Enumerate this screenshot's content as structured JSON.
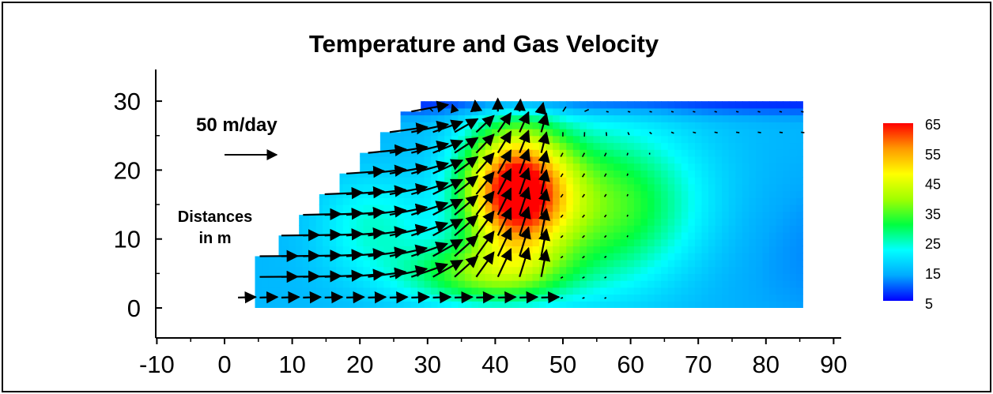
{
  "chart_data": {
    "type": "heatmap",
    "title": "Temperature and Gas Velocity",
    "xlabel": "",
    "ylabel": "",
    "xlim": [
      -10,
      90
    ],
    "ylim": [
      -3,
      35
    ],
    "x_ticks": [
      -10,
      0,
      10,
      20,
      30,
      40,
      50,
      60,
      70,
      80,
      90
    ],
    "y_ticks": [
      0,
      10,
      20,
      30
    ],
    "annotations": {
      "reference_arrow_label": "50 m/day",
      "reference_arrow_magnitude_m_per_day": 50,
      "distances_line1": "Distances",
      "distances_line2": "in m"
    },
    "colorbar": {
      "labels": [
        "65",
        "55",
        "45",
        "35",
        "25",
        "15",
        "5"
      ],
      "min": 5,
      "max": 65,
      "colors": [
        "#0000ff",
        "#00aaff",
        "#00ffff",
        "#00ff40",
        "#a0ff00",
        "#ffff00",
        "#ff9900",
        "#ff0000"
      ]
    },
    "domain_outline": [
      [
        4.5,
        0
      ],
      [
        85.5,
        0
      ],
      [
        85.5,
        30
      ],
      [
        29,
        30
      ],
      [
        29,
        28.5
      ],
      [
        26,
        28.5
      ],
      [
        26,
        25.5
      ],
      [
        23,
        25.5
      ],
      [
        23,
        22.5
      ],
      [
        20,
        22.5
      ],
      [
        20,
        19.5
      ],
      [
        17,
        19.5
      ],
      [
        17,
        16.5
      ],
      [
        14,
        16.5
      ],
      [
        14,
        13.5
      ],
      [
        11,
        13.5
      ],
      [
        11,
        10.5
      ],
      [
        8,
        10.5
      ],
      [
        8,
        7.5
      ],
      [
        4.5,
        7.5
      ],
      [
        4.5,
        4.5
      ]
    ],
    "temperature_field": {
      "background": 15,
      "hotspots": [
        {
          "x": 43,
          "y": 17,
          "peak": 65
        },
        {
          "x": 38,
          "y": 5,
          "peak": 50
        },
        {
          "x": 56,
          "y": 15,
          "peak": 35
        },
        {
          "x": 22,
          "y": 12,
          "peak": 30
        }
      ]
    },
    "velocity_field": {
      "x_start": 2,
      "x_spacing": 3.2,
      "y_start": 1.5,
      "y_spacing": 3,
      "cold_inflow_speed": 28,
      "plume_center": {
        "x": 43,
        "y": 17
      },
      "max_speed": 45,
      "top_outflow_speed": 14
    }
  }
}
